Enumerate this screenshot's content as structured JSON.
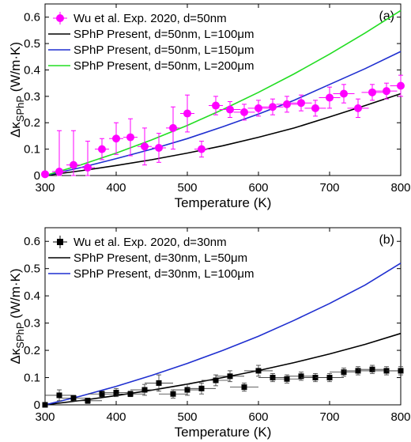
{
  "chart_data": [
    {
      "type": "line",
      "panel_label": "(a)",
      "xlabel": "Temperature (K)",
      "ylabel_parts": [
        "Δκ",
        "SPhP",
        " (W/m·K)"
      ],
      "xlim": [
        300,
        800
      ],
      "ylim": [
        0,
        0.65
      ],
      "xticks": [
        300,
        400,
        500,
        600,
        700,
        800
      ],
      "yticks": [
        0,
        0.1,
        0.2,
        0.3,
        0.4,
        0.5,
        0.6
      ],
      "ytick_labels": [
        "0",
        "0.1",
        "0.2",
        "0.3",
        "0.4",
        "0.5",
        "0.6"
      ],
      "legend_position": "top-left",
      "experiment": {
        "name": "Wu et al. Exp. 2020, d=50nm",
        "color": "#ff00ff",
        "marker": "circle",
        "points": [
          {
            "x": 300,
            "y": 0.005,
            "yerr": 0.005,
            "xerr": 5
          },
          {
            "x": 320,
            "y": 0.015,
            "yerr": 0.155,
            "xerr": 10
          },
          {
            "x": 340,
            "y": 0.04,
            "yerr": 0.13,
            "xerr": 10
          },
          {
            "x": 360,
            "y": 0.03,
            "yerr": 0.1,
            "xerr": 10
          },
          {
            "x": 380,
            "y": 0.1,
            "yerr": 0.04,
            "xerr": 10
          },
          {
            "x": 400,
            "y": 0.14,
            "yerr": 0.06,
            "xerr": 10
          },
          {
            "x": 420,
            "y": 0.145,
            "yerr": 0.07,
            "xerr": 10
          },
          {
            "x": 440,
            "y": 0.11,
            "yerr": 0.07,
            "xerr": 10
          },
          {
            "x": 460,
            "y": 0.105,
            "yerr": 0.055,
            "xerr": 10
          },
          {
            "x": 480,
            "y": 0.18,
            "yerr": 0.08,
            "xerr": 10
          },
          {
            "x": 500,
            "y": 0.235,
            "yerr": 0.07,
            "xerr": 10
          },
          {
            "x": 520,
            "y": 0.1,
            "yerr": 0.03,
            "xerr": 10
          },
          {
            "x": 540,
            "y": 0.265,
            "yerr": 0.035,
            "xerr": 10
          },
          {
            "x": 560,
            "y": 0.25,
            "yerr": 0.03,
            "xerr": 15
          },
          {
            "x": 580,
            "y": 0.24,
            "yerr": 0.03,
            "xerr": 15
          },
          {
            "x": 600,
            "y": 0.255,
            "yerr": 0.03,
            "xerr": 15
          },
          {
            "x": 620,
            "y": 0.26,
            "yerr": 0.03,
            "xerr": 15
          },
          {
            "x": 640,
            "y": 0.27,
            "yerr": 0.03,
            "xerr": 15
          },
          {
            "x": 660,
            "y": 0.275,
            "yerr": 0.03,
            "xerr": 15
          },
          {
            "x": 680,
            "y": 0.255,
            "yerr": 0.03,
            "xerr": 15
          },
          {
            "x": 700,
            "y": 0.295,
            "yerr": 0.04,
            "xerr": 15
          },
          {
            "x": 720,
            "y": 0.31,
            "yerr": 0.035,
            "xerr": 15
          },
          {
            "x": 740,
            "y": 0.255,
            "yerr": 0.035,
            "xerr": 15
          },
          {
            "x": 760,
            "y": 0.315,
            "yerr": 0.03,
            "xerr": 15
          },
          {
            "x": 780,
            "y": 0.32,
            "yerr": 0.03,
            "xerr": 15
          },
          {
            "x": 800,
            "y": 0.34,
            "yerr": 0.04,
            "xerr": 15
          }
        ]
      },
      "series": [
        {
          "name": "SPhP Present, d=50nm, L=100μm",
          "color": "#000000",
          "x": [
            300,
            350,
            400,
            450,
            500,
            550,
            600,
            650,
            700,
            750,
            800
          ],
          "y": [
            0.0,
            0.018,
            0.038,
            0.06,
            0.085,
            0.113,
            0.145,
            0.18,
            0.222,
            0.265,
            0.31
          ]
        },
        {
          "name": "SPhP Present, d=50nm, L=150μm",
          "color": "#1f2fd0",
          "x": [
            300,
            350,
            400,
            450,
            500,
            550,
            600,
            650,
            700,
            750,
            800
          ],
          "y": [
            0.0,
            0.03,
            0.064,
            0.1,
            0.14,
            0.185,
            0.233,
            0.285,
            0.345,
            0.405,
            0.47
          ]
        },
        {
          "name": "SPhP Present, d=50nm, L=200μm",
          "color": "#22dd22",
          "x": [
            300,
            350,
            400,
            450,
            500,
            550,
            600,
            650,
            700,
            750,
            800
          ],
          "y": [
            0.0,
            0.04,
            0.085,
            0.135,
            0.19,
            0.25,
            0.315,
            0.385,
            0.46,
            0.54,
            0.625
          ]
        }
      ]
    },
    {
      "type": "line",
      "panel_label": "(b)",
      "xlabel": "Temperature (K)",
      "ylabel_parts": [
        "Δκ",
        "SPhP",
        " (W/m·K)"
      ],
      "xlim": [
        300,
        800
      ],
      "ylim": [
        0,
        0.65
      ],
      "xticks": [
        300,
        400,
        500,
        600,
        700,
        800
      ],
      "yticks": [
        0,
        0.1,
        0.2,
        0.3,
        0.4,
        0.5,
        0.6
      ],
      "ytick_labels": [
        "0",
        "0.1",
        "0.2",
        "0.3",
        "0.4",
        "0.5",
        "0.6"
      ],
      "legend_position": "top-left",
      "experiment": {
        "name": "Wu et al. Exp. 2020, d=30nm",
        "color": "#000000",
        "marker": "square",
        "points": [
          {
            "x": 300,
            "y": 0.0,
            "yerr": 0.005,
            "xerr": 5
          },
          {
            "x": 320,
            "y": 0.035,
            "yerr": 0.02,
            "xerr": 20
          },
          {
            "x": 340,
            "y": 0.025,
            "yerr": 0.01,
            "xerr": 20
          },
          {
            "x": 360,
            "y": 0.015,
            "yerr": 0.01,
            "xerr": 20
          },
          {
            "x": 380,
            "y": 0.04,
            "yerr": 0.01,
            "xerr": 20
          },
          {
            "x": 400,
            "y": 0.045,
            "yerr": 0.015,
            "xerr": 20
          },
          {
            "x": 420,
            "y": 0.04,
            "yerr": 0.01,
            "xerr": 20
          },
          {
            "x": 440,
            "y": 0.055,
            "yerr": 0.02,
            "xerr": 20
          },
          {
            "x": 460,
            "y": 0.08,
            "yerr": 0.03,
            "xerr": 20
          },
          {
            "x": 480,
            "y": 0.04,
            "yerr": 0.015,
            "xerr": 20
          },
          {
            "x": 500,
            "y": 0.055,
            "yerr": 0.02,
            "xerr": 20
          },
          {
            "x": 520,
            "y": 0.06,
            "yerr": 0.02,
            "xerr": 20
          },
          {
            "x": 540,
            "y": 0.09,
            "yerr": 0.02,
            "xerr": 20
          },
          {
            "x": 560,
            "y": 0.105,
            "yerr": 0.02,
            "xerr": 20
          },
          {
            "x": 580,
            "y": 0.065,
            "yerr": 0.015,
            "xerr": 20
          },
          {
            "x": 600,
            "y": 0.125,
            "yerr": 0.02,
            "xerr": 20
          },
          {
            "x": 620,
            "y": 0.1,
            "yerr": 0.015,
            "xerr": 20
          },
          {
            "x": 640,
            "y": 0.095,
            "yerr": 0.015,
            "xerr": 20
          },
          {
            "x": 660,
            "y": 0.105,
            "yerr": 0.015,
            "xerr": 20
          },
          {
            "x": 680,
            "y": 0.1,
            "yerr": 0.015,
            "xerr": 20
          },
          {
            "x": 700,
            "y": 0.1,
            "yerr": 0.015,
            "xerr": 20
          },
          {
            "x": 720,
            "y": 0.12,
            "yerr": 0.015,
            "xerr": 20
          },
          {
            "x": 740,
            "y": 0.125,
            "yerr": 0.015,
            "xerr": 20
          },
          {
            "x": 760,
            "y": 0.13,
            "yerr": 0.015,
            "xerr": 20
          },
          {
            "x": 780,
            "y": 0.125,
            "yerr": 0.015,
            "xerr": 20
          },
          {
            "x": 800,
            "y": 0.125,
            "yerr": 0.015,
            "xerr": 20
          }
        ]
      },
      "series": [
        {
          "name": "SPhP Present, d=30nm, L=50μm",
          "color": "#000000",
          "x": [
            300,
            350,
            400,
            450,
            500,
            550,
            600,
            650,
            700,
            750,
            800
          ],
          "y": [
            0.0,
            0.016,
            0.034,
            0.054,
            0.076,
            0.1,
            0.126,
            0.155,
            0.187,
            0.222,
            0.262
          ]
        },
        {
          "name": "SPhP Present, d=30nm, L=100μm",
          "color": "#1f2fd0",
          "x": [
            300,
            350,
            400,
            450,
            500,
            550,
            600,
            650,
            700,
            750,
            800
          ],
          "y": [
            0.0,
            0.032,
            0.068,
            0.108,
            0.152,
            0.2,
            0.252,
            0.31,
            0.372,
            0.44,
            0.52
          ]
        }
      ]
    }
  ]
}
